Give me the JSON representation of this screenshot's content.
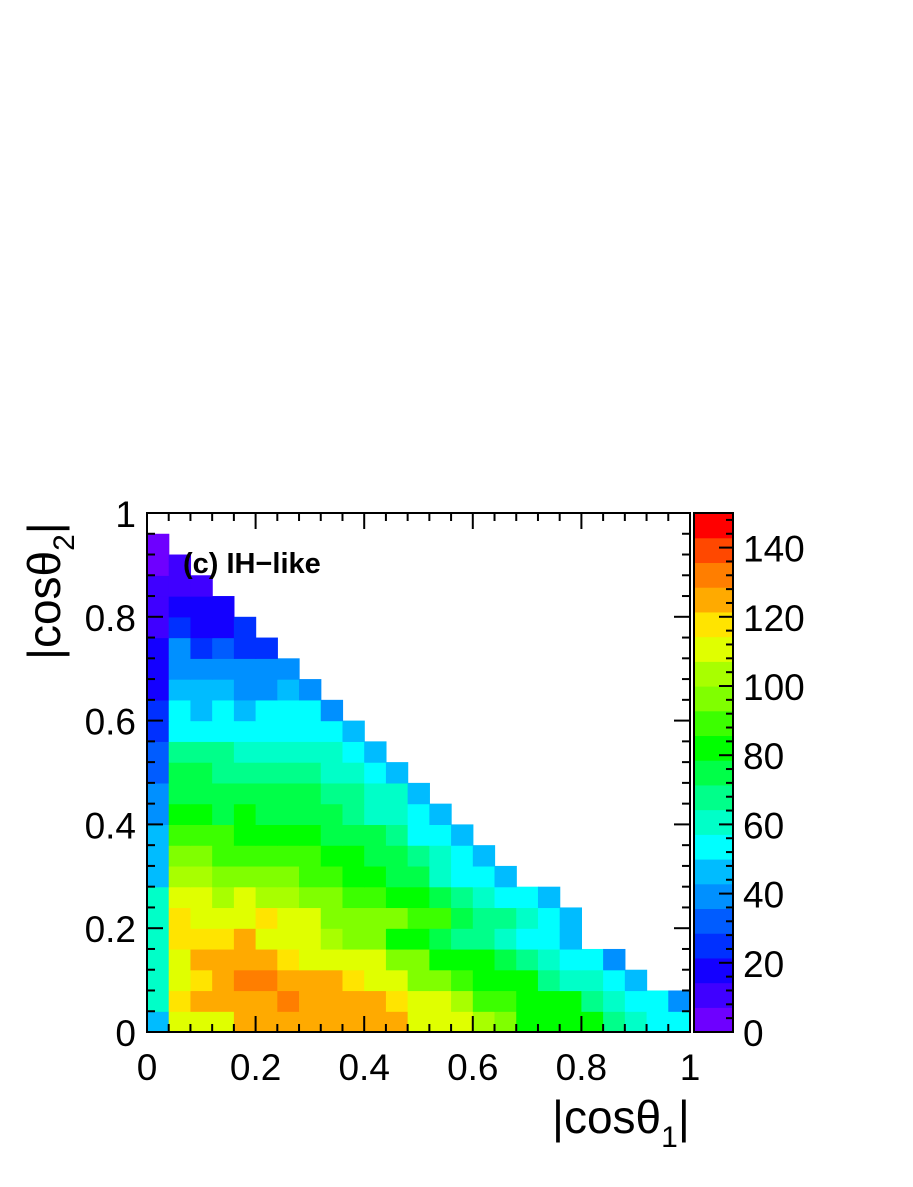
{
  "chart_data": {
    "type": "heatmap",
    "annotation": "(c) IH−like",
    "xlabel": {
      "main": "|cosθ",
      "sub": "1",
      "end": "|"
    },
    "ylabel": {
      "main": "|cosθ",
      "sub": "2",
      "end": "|"
    },
    "xlim": [
      0,
      1
    ],
    "ylim": [
      0,
      1
    ],
    "zlim": [
      0,
      150
    ],
    "bins": {
      "x": 25,
      "y": 25,
      "width": 0.04
    },
    "x_ticks": [
      "0",
      "0.2",
      "0.4",
      "0.6",
      "0.8",
      "1"
    ],
    "y_ticks": [
      "0",
      "0.2",
      "0.4",
      "0.6",
      "0.8",
      "1"
    ],
    "colorbar_ticks": [
      "0",
      "20",
      "40",
      "60",
      "80",
      "100",
      "120",
      "140"
    ],
    "colorbar_tick_values": [
      0,
      20,
      40,
      60,
      80,
      100,
      120,
      140
    ],
    "palette": [
      "#6e00ff",
      "#3f00ff",
      "#1400ff",
      "#0030ff",
      "#005cff",
      "#0090ff",
      "#00bcff",
      "#00ffff",
      "#00ffc8",
      "#00ff8a",
      "#00ff48",
      "#00ff00",
      "#3cff00",
      "#80ff00",
      "#a8ff00",
      "#e0ff00",
      "#ffe400",
      "#ffaa00",
      "#ff7e00",
      "#ff4800",
      "#ff0000"
    ],
    "rows_note": "rows[j] lists bin contents for y-bin j (from y=0 upward), x-bin i from x=0 up to the diagonal",
    "rows": [
      [
        42,
        115,
        116,
        116,
        124,
        124,
        124,
        126,
        124,
        124,
        124,
        124,
        116,
        115,
        112,
        103,
        96,
        86,
        85,
        82,
        80,
        70,
        63,
        56,
        49
      ],
      [
        58,
        117,
        125,
        124,
        124,
        124,
        132,
        126,
        126,
        126,
        126,
        120,
        110,
        110,
        105,
        93,
        92,
        84,
        83,
        80,
        70,
        60,
        55,
        50,
        41
      ],
      [
        62,
        116,
        123,
        124,
        132,
        132,
        126,
        126,
        126,
        118,
        112,
        110,
        98,
        97,
        89,
        84,
        83,
        80,
        70,
        62,
        57,
        51,
        44
      ],
      [
        62,
        116,
        124,
        124,
        124,
        124,
        119,
        116,
        116,
        110,
        110,
        98,
        97,
        85,
        84,
        81,
        72,
        70,
        60,
        53,
        50,
        39
      ],
      [
        62,
        119,
        119,
        119,
        124,
        116,
        116,
        112,
        104,
        100,
        95,
        86,
        86,
        74,
        69,
        67,
        62,
        55,
        52,
        44
      ],
      [
        62,
        117,
        115,
        116,
        110,
        117,
        114,
        112,
        100,
        100,
        100,
        96,
        92,
        88,
        72,
        70,
        64,
        58,
        56,
        47
      ],
      [
        60,
        112,
        112,
        104,
        112,
        104,
        104,
        98,
        98,
        92,
        89,
        85,
        84,
        72,
        70,
        63,
        55,
        54,
        44
      ],
      [
        48,
        104,
        104,
        100,
        100,
        98,
        94,
        92,
        89,
        86,
        80,
        75,
        72,
        60,
        55,
        50,
        42
      ],
      [
        47,
        96,
        96,
        92,
        92,
        90,
        90,
        88,
        85,
        84,
        76,
        74,
        65,
        58,
        52,
        47
      ],
      [
        42,
        90,
        88,
        88,
        84,
        86,
        84,
        82,
        78,
        74,
        72,
        65,
        56,
        52,
        46
      ],
      [
        40,
        86,
        84,
        78,
        82,
        78,
        76,
        74,
        72,
        70,
        62,
        58,
        55,
        45
      ],
      [
        36,
        76,
        76,
        72,
        76,
        76,
        72,
        72,
        70,
        64,
        62,
        58,
        47
      ],
      [
        32,
        72,
        72,
        70,
        70,
        68,
        64,
        68,
        63,
        60,
        56,
        42
      ],
      [
        28,
        68,
        68,
        64,
        62,
        62,
        60,
        58,
        58,
        55,
        45
      ],
      [
        24,
        56,
        54,
        54,
        52,
        52,
        55,
        54,
        50,
        42
      ],
      [
        20,
        50,
        44,
        52,
        46,
        52,
        54,
        55,
        41
      ],
      [
        16,
        42,
        42,
        42,
        40,
        40,
        42,
        38
      ],
      [
        14,
        38,
        38,
        36,
        36,
        36,
        38
      ],
      [
        12,
        36,
        26,
        30,
        22,
        26
      ],
      [
        8,
        26,
        18,
        12,
        22
      ],
      [
        6,
        12,
        14,
        16
      ],
      [
        4,
        6,
        10
      ],
      [
        3,
        4
      ],
      [
        2
      ]
    ]
  }
}
